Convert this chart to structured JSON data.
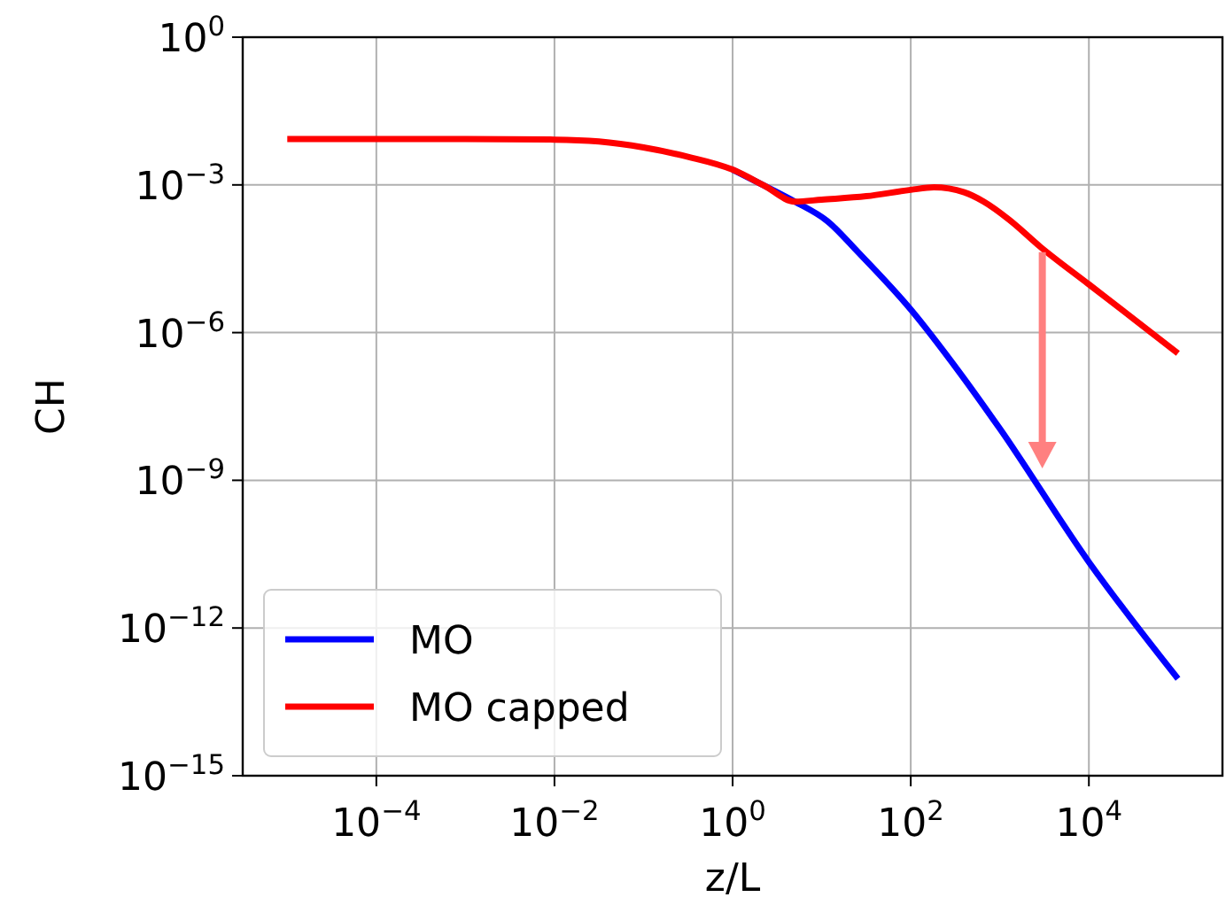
{
  "chart_data": {
    "type": "line",
    "xlabel": "z/L",
    "ylabel": "CH",
    "log": "xy",
    "grid": true,
    "legend": "bottom left",
    "marker": "none",
    "line_style": "solid",
    "xlim": [
      3.16e-06,
      316000.0
    ],
    "xticks": [
      {
        "value": 0.0001,
        "label": "10$^{−4}$"
      },
      {
        "value": 0.01,
        "label": "10$^{−2}$"
      },
      {
        "value": 1,
        "label": "10$^{0}$"
      },
      {
        "value": 100,
        "label": "10$^{2}$"
      },
      {
        "value": 10000,
        "label": "10$^{4}$"
      }
    ],
    "ylim": [
      1e-15,
      1
    ],
    "yticks": [
      {
        "value": 1e-15,
        "label": "10$^{−15}$"
      },
      {
        "value": 1e-12,
        "label": "10$^{−12}$"
      },
      {
        "value": 1e-09,
        "label": "10$^{−9}$"
      },
      {
        "value": 1e-06,
        "label": "10$^{−6}$"
      },
      {
        "value": 0.001,
        "label": "10$^{−3}$"
      },
      {
        "value": 1,
        "label": "10$^{0}$"
      }
    ],
    "series": [
      {
        "name": "MO",
        "color": "#0000ff",
        "x": [
          1,
          2.24,
          5.01,
          11.5,
          25.7,
          100,
          347,
          1000,
          10000,
          100000
        ],
        "values": [
          0.00204,
          0.000977,
          0.000457,
          0.000186,
          4.27e-05,
          2.95e-06,
          1.62e-07,
          1.12e-08,
          2.19e-11,
          9.33e-14
        ]
      },
      {
        "name": "MO capped",
        "color": "#ff0000",
        "x": [
          1e-05,
          0.001,
          0.01,
          0.0316,
          0.1,
          0.316,
          1,
          2.24,
          5.01,
          10,
          31.6,
          100,
          182,
          398,
          661,
          1259,
          2818,
          10000,
          31623,
          100000
        ],
        "values": [
          0.00851,
          0.00851,
          0.00832,
          0.00759,
          0.00575,
          0.00372,
          0.00204,
          0.000977,
          0.000457,
          0.000501,
          0.000589,
          0.000794,
          0.000891,
          0.000708,
          0.000457,
          0.0002,
          5.62e-05,
          9.55e-06,
          1.91e-06,
          3.8e-07
        ]
      }
    ]
  }
}
